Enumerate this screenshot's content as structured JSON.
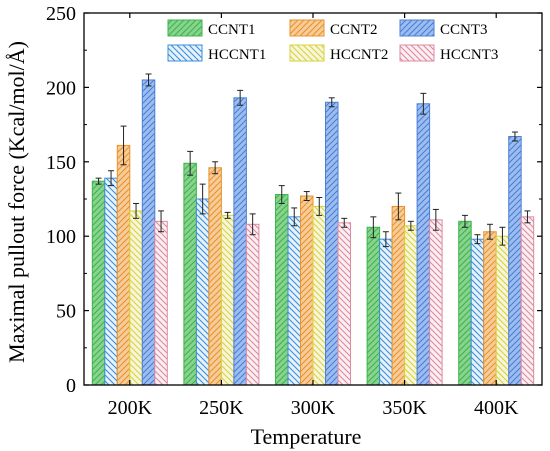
{
  "chart_data": {
    "type": "bar",
    "xlabel": "Temperature",
    "ylabel": "Maximal pullout force (Kcal/mol/Å)",
    "categories": [
      "200K",
      "250K",
      "300K",
      "350K",
      "400K"
    ],
    "ylim": [
      0,
      250
    ],
    "yticks": [
      0,
      50,
      100,
      150,
      200,
      250
    ],
    "legend_position": "top",
    "series": [
      {
        "name": "CCNT1",
        "values": [
          137,
          149,
          128,
          106,
          110
        ],
        "errors": [
          2,
          8,
          6,
          7,
          4
        ],
        "color": "#3cb54a",
        "face": "#8ad28f",
        "hatch": "right"
      },
      {
        "name": "HCCNT1",
        "values": [
          139,
          125,
          113,
          98,
          98
        ],
        "errors": [
          5,
          10,
          6,
          5,
          3
        ],
        "color": "#3b8fd9",
        "face": "#e7f2fb",
        "hatch": "left"
      },
      {
        "name": "CCNT2",
        "values": [
          161,
          146,
          127,
          120,
          103
        ],
        "errors": [
          13,
          4,
          3,
          9,
          5
        ],
        "color": "#e8932e",
        "face": "#f7cc98",
        "hatch": "right"
      },
      {
        "name": "HCCNT2",
        "values": [
          117,
          114,
          120,
          107,
          100
        ],
        "errors": [
          5,
          2,
          6,
          3,
          6
        ],
        "color": "#d7d23a",
        "face": "#f7f6dc",
        "hatch": "left"
      },
      {
        "name": "CCNT3",
        "values": [
          205,
          193,
          190,
          189,
          167
        ],
        "errors": [
          4,
          5,
          3,
          7,
          3
        ],
        "color": "#4a7fd8",
        "face": "#9dbdee",
        "hatch": "right"
      },
      {
        "name": "HCCNT3",
        "values": [
          110,
          108,
          109,
          111,
          113
        ],
        "errors": [
          7,
          7,
          3,
          7,
          4
        ],
        "color": "#dd8aa1",
        "face": "#fbeff2",
        "hatch": "left"
      }
    ]
  }
}
